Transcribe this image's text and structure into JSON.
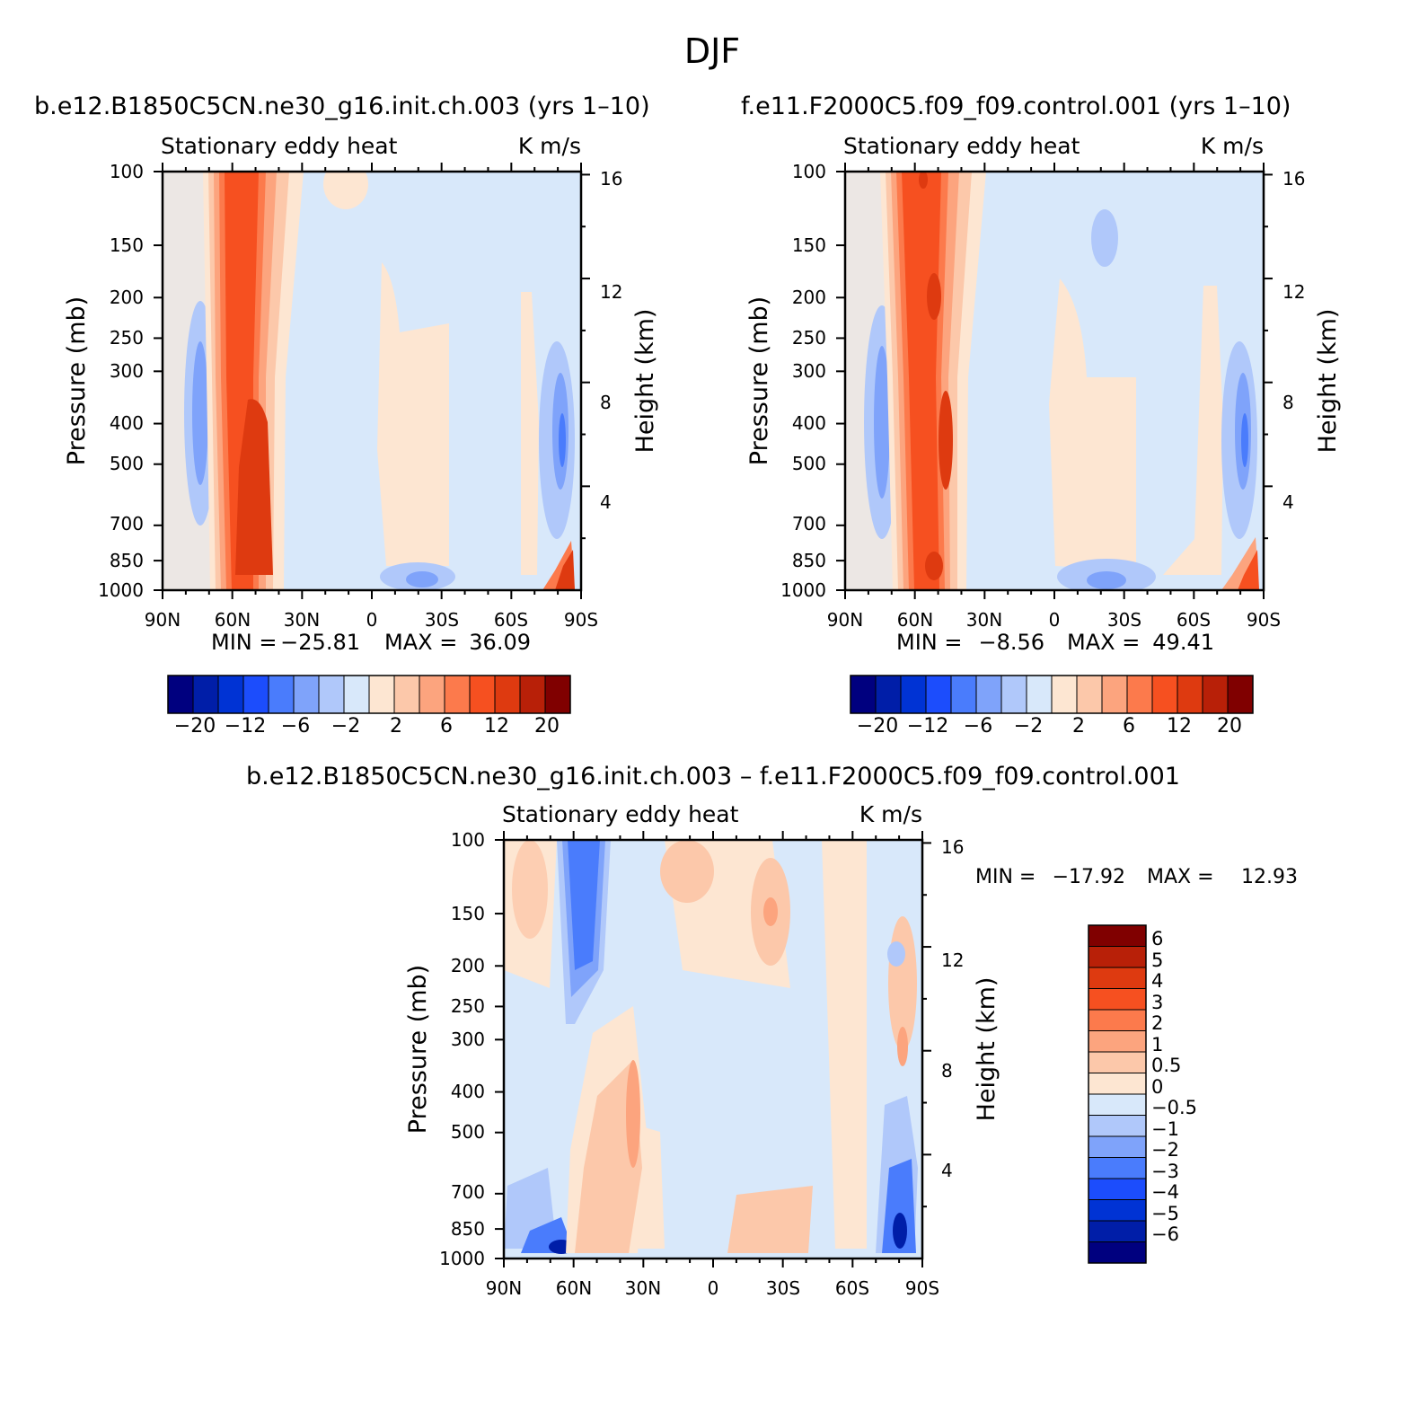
{
  "figure": {
    "title": "DJF"
  },
  "chart_data": [
    {
      "type": "heatmap",
      "title": "b.e12.B1850C5CN.ne30_g16.init.ch.003 (yrs 1–10)",
      "left_string": "Stationary eddy heat",
      "right_string": "K m/s",
      "ylabel": "Pressure (mb)",
      "ylabel_right": "Height (km)",
      "x_ticks": [
        "90N",
        "60N",
        "30N",
        "0",
        "30S",
        "60S",
        "90S"
      ],
      "y_ticks": [
        "100",
        "150",
        "200",
        "250",
        "300",
        "400",
        "500",
        "700",
        "850",
        "1000"
      ],
      "height_ticks": [
        "16",
        "12",
        "8",
        "4"
      ],
      "min_label": "MIN =",
      "min": "−25.81",
      "max_label": "MAX =",
      "max": "36.09",
      "contour_levels": [
        -20,
        -16,
        -12,
        -8,
        -6,
        -4,
        -2,
        0,
        2,
        4,
        6,
        8,
        12,
        16,
        20
      ],
      "colorbar_labels": [
        "−20",
        "−12",
        "−6",
        "−2",
        "2",
        "6",
        "12",
        "20"
      ],
      "colors": [
        "#00007f",
        "#001ea8",
        "#0033d4",
        "#1c4dfc",
        "#4a7cfc",
        "#7fa3fa",
        "#b0c8fa",
        "#d8e8fa",
        "#fde6d2",
        "#fcc8aa",
        "#fca47e",
        "#fc7a4c",
        "#f65020",
        "#de3a10",
        "#b82008",
        "#800000"
      ]
    },
    {
      "type": "heatmap",
      "title": "f.e11.F2000C5.f09_f09.control.001 (yrs 1–10)",
      "left_string": "Stationary eddy heat",
      "right_string": "K m/s",
      "ylabel": "Pressure (mb)",
      "ylabel_right": "Height (km)",
      "x_ticks": [
        "90N",
        "60N",
        "30N",
        "0",
        "30S",
        "60S",
        "90S"
      ],
      "y_ticks": [
        "100",
        "150",
        "200",
        "250",
        "300",
        "400",
        "500",
        "700",
        "850",
        "1000"
      ],
      "height_ticks": [
        "16",
        "12",
        "8",
        "4"
      ],
      "min_label": "MIN =",
      "min": "−8.56",
      "max_label": "MAX =",
      "max": "49.41",
      "contour_levels": [
        -20,
        -16,
        -12,
        -8,
        -6,
        -4,
        -2,
        0,
        2,
        4,
        6,
        8,
        12,
        16,
        20
      ],
      "colorbar_labels": [
        "−20",
        "−12",
        "−6",
        "−2",
        "2",
        "6",
        "12",
        "20"
      ],
      "colors": [
        "#00007f",
        "#001ea8",
        "#0033d4",
        "#1c4dfc",
        "#4a7cfc",
        "#7fa3fa",
        "#b0c8fa",
        "#d8e8fa",
        "#fde6d2",
        "#fcc8aa",
        "#fca47e",
        "#fc7a4c",
        "#f65020",
        "#de3a10",
        "#b82008",
        "#800000"
      ]
    },
    {
      "type": "heatmap",
      "title": "b.e12.B1850C5CN.ne30_g16.init.ch.003 – f.e11.F2000C5.f09_f09.control.001",
      "left_string": "Stationary eddy heat",
      "right_string": "K m/s",
      "ylabel": "Pressure (mb)",
      "ylabel_right": "Height (km)",
      "x_ticks": [
        "90N",
        "60N",
        "30N",
        "0",
        "30S",
        "60S",
        "90S"
      ],
      "y_ticks": [
        "100",
        "150",
        "200",
        "250",
        "300",
        "400",
        "500",
        "700",
        "850",
        "1000"
      ],
      "height_ticks": [
        "16",
        "12",
        "8",
        "4"
      ],
      "min_label": "MIN =",
      "min": "−17.92",
      "max_label": "MAX =",
      "max": "12.93",
      "contour_levels": [
        -6,
        -5,
        -4,
        -3,
        -2,
        -1,
        -0.5,
        0,
        0.5,
        1,
        2,
        3,
        4,
        5,
        6
      ],
      "colorbar_labels": [
        "6",
        "5",
        "4",
        "3",
        "2",
        "1",
        "0.5",
        "0",
        "−0.5",
        "−1",
        "−2",
        "−3",
        "−4",
        "−5",
        "−6"
      ],
      "colors": [
        "#00007f",
        "#001ea8",
        "#0033d4",
        "#1c4dfc",
        "#4a7cfc",
        "#7fa3fa",
        "#b0c8fa",
        "#d8e8fa",
        "#fde6d2",
        "#fcc8aa",
        "#fca47e",
        "#fc7a4c",
        "#f65020",
        "#de3a10",
        "#b82008",
        "#800000"
      ]
    }
  ]
}
